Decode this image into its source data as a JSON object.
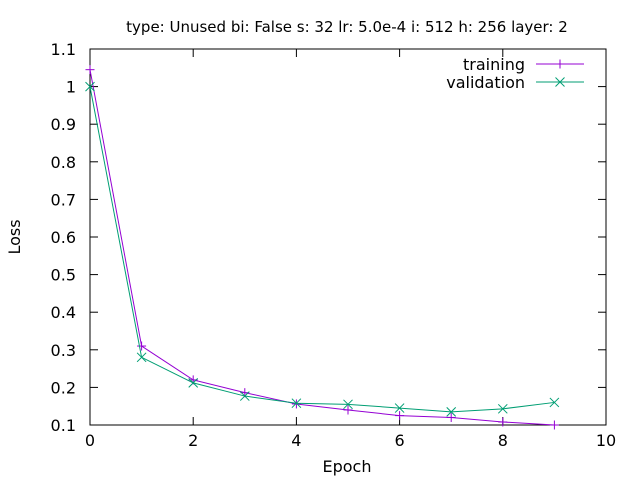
{
  "chart_data": {
    "type": "line",
    "title": "type: Unused bi: False s: 32 lr: 5.0e-4 i: 512 h: 256 layer: 2",
    "xlabel": "Epoch",
    "ylabel": "Loss",
    "xlim": [
      0,
      10
    ],
    "ylim": [
      0.1,
      1.1
    ],
    "xticks": [
      0,
      2,
      4,
      6,
      8,
      10
    ],
    "yticks": [
      0.1,
      0.2,
      0.3,
      0.4,
      0.5,
      0.6,
      0.7,
      0.8,
      0.9,
      1,
      1.1
    ],
    "xtick_labels": [
      "0",
      "2",
      "4",
      "6",
      "8",
      "10"
    ],
    "ytick_labels": [
      "0.1",
      "0.2",
      "0.3",
      "0.4",
      "0.5",
      "0.6",
      "0.7",
      "0.8",
      "0.9",
      "1",
      "1.1"
    ],
    "grid": false,
    "legend_position": "top-right",
    "x": [
      0,
      1,
      2,
      3,
      4,
      5,
      6,
      7,
      8,
      9
    ],
    "series": [
      {
        "name": "training",
        "color": "#9400d3",
        "marker": "plus",
        "values": [
          1.045,
          0.31,
          0.22,
          0.186,
          0.156,
          0.14,
          0.125,
          0.12,
          0.108,
          0.1
        ]
      },
      {
        "name": "validation",
        "color": "#009e73",
        "marker": "cross",
        "values": [
          1.0,
          0.28,
          0.212,
          0.177,
          0.158,
          0.155,
          0.145,
          0.135,
          0.143,
          0.16
        ]
      }
    ]
  }
}
